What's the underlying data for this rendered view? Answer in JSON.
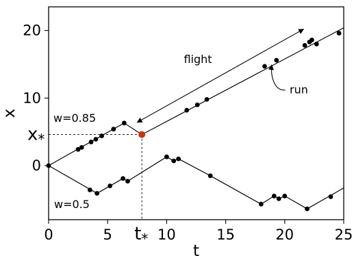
{
  "chart_data": {
    "type": "line",
    "xlabel": "t",
    "ylabel": "x",
    "xlim": [
      0,
      25
    ],
    "ylim": [
      -8,
      23.5
    ],
    "xticks": [
      0,
      5,
      10,
      15,
      20,
      25
    ],
    "yticks": [
      0,
      10,
      20
    ],
    "grid": false,
    "series": [
      {
        "name": "w=0.85",
        "label_position": "upper-left",
        "line": [
          [
            0,
            0
          ],
          [
            6.4,
            6.3
          ],
          [
            7.9,
            4.6
          ],
          [
            25,
            20.4
          ]
        ],
        "points": [
          [
            2.5,
            2.4
          ],
          [
            2.8,
            2.7
          ],
          [
            3.6,
            3.5
          ],
          [
            4.0,
            3.9
          ],
          [
            4.5,
            4.4
          ],
          [
            5.5,
            5.4
          ],
          [
            6.4,
            6.3
          ],
          [
            11.7,
            8.2
          ],
          [
            12.6,
            9.0
          ],
          [
            13.4,
            9.8
          ],
          [
            18.3,
            14.7
          ],
          [
            19.3,
            15.6
          ],
          [
            21.7,
            17.8
          ],
          [
            22.1,
            18.3
          ],
          [
            22.3,
            18.6
          ],
          [
            22.7,
            18.0
          ],
          [
            24.6,
            19.6
          ]
        ]
      },
      {
        "name": "w=0.5",
        "label_position": "lower-left",
        "line": [
          [
            0,
            0
          ],
          [
            4.1,
            -4.1
          ],
          [
            6.3,
            -1.9
          ],
          [
            6.7,
            -2.3
          ],
          [
            10.0,
            1.3
          ],
          [
            10.6,
            0.7
          ],
          [
            11.0,
            1.0
          ],
          [
            13.7,
            -1.5
          ],
          [
            18.0,
            -5.7
          ],
          [
            19.1,
            -4.5
          ],
          [
            19.5,
            -4.9
          ],
          [
            20.0,
            -4.5
          ],
          [
            21.9,
            -6.4
          ],
          [
            25,
            -3.3
          ]
        ],
        "points": [
          [
            0,
            0
          ],
          [
            3.5,
            -3.6
          ],
          [
            4.1,
            -4.1
          ],
          [
            5.2,
            -3.0
          ],
          [
            6.3,
            -1.9
          ],
          [
            6.7,
            -2.3
          ],
          [
            10.0,
            1.3
          ],
          [
            10.6,
            0.7
          ],
          [
            11.0,
            1.0
          ],
          [
            13.7,
            -1.5
          ],
          [
            18.0,
            -5.7
          ],
          [
            19.1,
            -4.5
          ],
          [
            19.5,
            -4.9
          ],
          [
            20.0,
            -4.5
          ],
          [
            21.9,
            -6.4
          ],
          [
            23.9,
            -4.6
          ]
        ]
      }
    ],
    "highlight": {
      "t": 7.9,
      "x": 4.6,
      "color": "#cc3311",
      "t_label": "t",
      "x_label": "x",
      "subscript": "*"
    },
    "annotations": {
      "flight_text": "flight",
      "flight_arrow": {
        "from": [
          7.5,
          6.4
        ],
        "to": [
          21.6,
          20.2
        ]
      },
      "run_text": "run",
      "run_text_at": [
        21.2,
        11.2
      ],
      "run_arrow_tip": [
        18.9,
        14.9
      ]
    }
  }
}
